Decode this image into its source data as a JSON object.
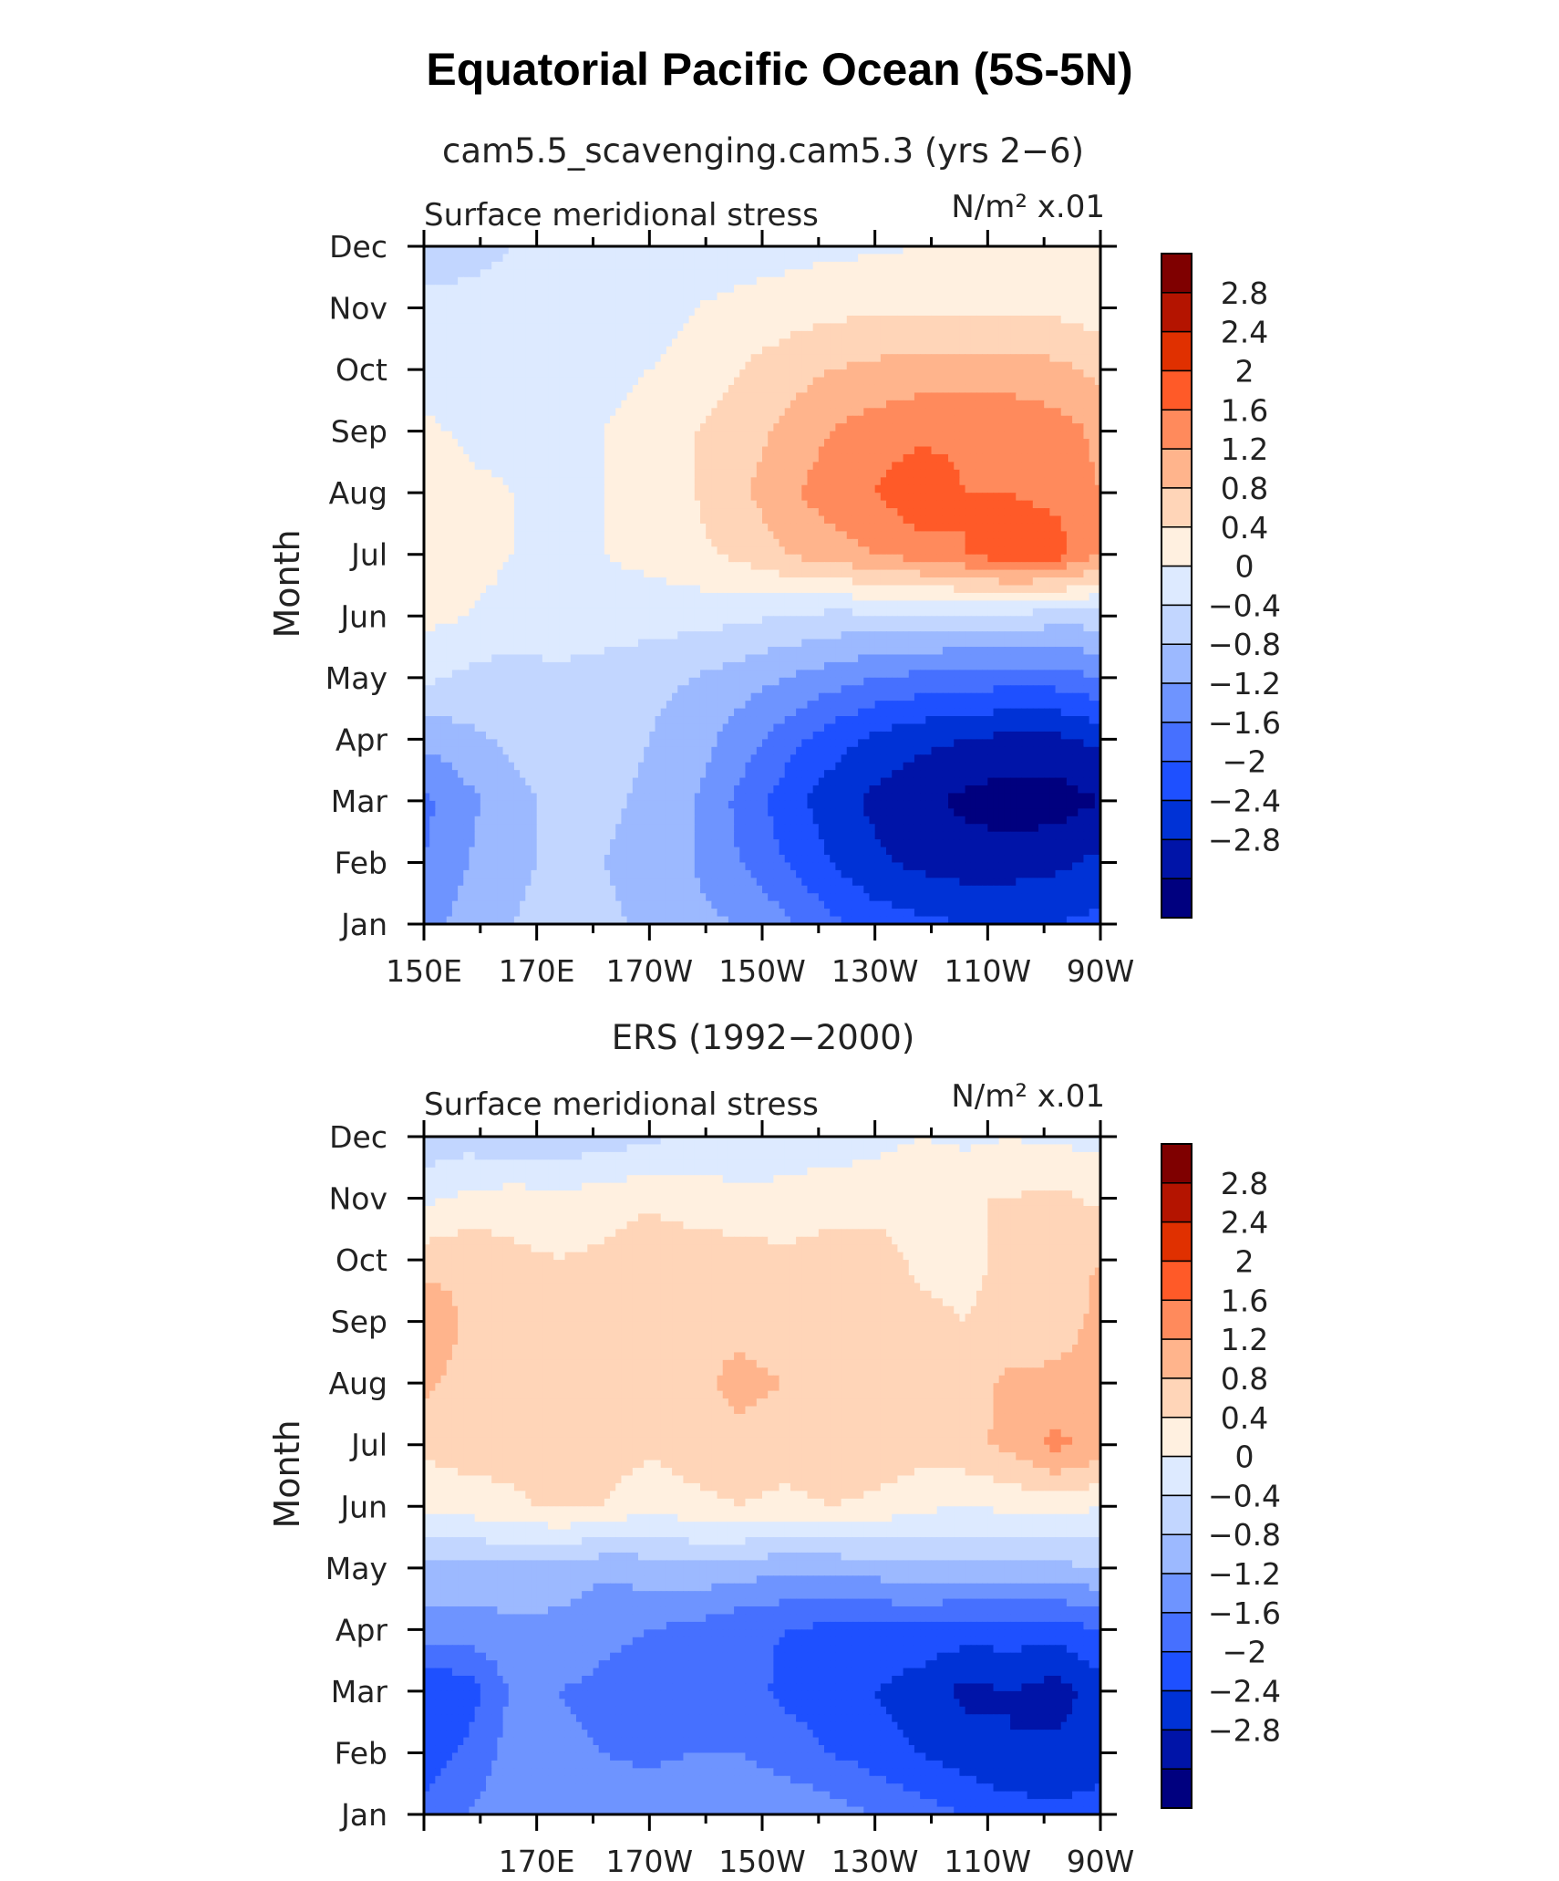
{
  "figure": {
    "title": "Equatorial Pacific Ocean (5S-5N)",
    "colors": [
      "#00007f",
      "#0014a8",
      "#0032d6",
      "#1e50ff",
      "#4670ff",
      "#6e94ff",
      "#9cb9ff",
      "#c2d6ff",
      "#ddeaff",
      "#fff0e0",
      "#ffd5b8",
      "#ffb48c",
      "#ff8a5c",
      "#ff5a28",
      "#e03000",
      "#b41400",
      "#7f0000"
    ]
  },
  "chart_data": [
    {
      "type": "heatmap",
      "subtitle": "cam5.5_scavenging.cam5.3 (yrs 2−6)",
      "left_label": "Surface meridional stress",
      "right_label": "N/m² x.01",
      "ylabel": "Month",
      "x_tick_labels": [
        "150E",
        "170E",
        "170W",
        "150W",
        "130W",
        "110W",
        "90W"
      ],
      "y_tick_labels": [
        "Jan",
        "Feb",
        "Mar",
        "Apr",
        "May",
        "Jun",
        "Jul",
        "Aug",
        "Sep",
        "Oct",
        "Nov",
        "Dec"
      ],
      "x_range_deg_east": [
        150,
        270
      ],
      "levels": [
        "2.8",
        "2.4",
        "2",
        "1.6",
        "1.2",
        "0.8",
        "0.4",
        "0",
        "−0.4",
        "−0.8",
        "−1.2",
        "−1.6",
        "−2",
        "−2.4",
        "−2.8"
      ],
      "level_values": [
        -2.8,
        -2.4,
        -2.0,
        -1.6,
        -1.2,
        -0.8,
        -0.4,
        0,
        0.4,
        0.8,
        1.2,
        1.6,
        2.0,
        2.4,
        2.8
      ],
      "x": [
        150,
        158,
        166,
        174,
        182,
        190,
        198,
        206,
        214,
        222,
        230,
        238,
        246,
        254,
        262,
        270
      ],
      "values": [
        [
          -1.0,
          -0.6,
          -0.4,
          -0.2,
          -0.3,
          -0.5,
          -0.7,
          -0.8,
          -1.1,
          -1.5,
          -1.8,
          -1.9,
          -2.0,
          -2.0,
          -2.0,
          -1.9
        ],
        [
          -1.2,
          -0.8,
          -0.5,
          -0.3,
          -0.4,
          -0.6,
          -0.8,
          -1.2,
          -1.6,
          -2.0,
          -2.3,
          -2.5,
          -2.6,
          -2.6,
          -2.5,
          -2.3
        ],
        [
          -1.3,
          -0.9,
          -0.5,
          -0.3,
          -0.3,
          -0.5,
          -0.8,
          -1.3,
          -1.8,
          -2.2,
          -2.5,
          -2.7,
          -2.9,
          -3.0,
          -3.0,
          -2.8
        ],
        [
          -0.7,
          -0.5,
          -0.3,
          -0.2,
          -0.2,
          -0.4,
          -0.6,
          -1.0,
          -1.4,
          -1.8,
          -2.1,
          -2.3,
          -2.4,
          -2.5,
          -2.5,
          -2.3
        ],
        [
          0.1,
          -0.1,
          -0.2,
          -0.1,
          -0.2,
          -0.3,
          -0.4,
          -0.6,
          -0.8,
          -1.0,
          -1.2,
          -1.3,
          -1.4,
          -1.4,
          -1.4,
          -1.2
        ],
        [
          0.5,
          0.4,
          0.3,
          0.3,
          0.25,
          0.2,
          0.15,
          0.1,
          0.0,
          -0.1,
          -0.1,
          -0.1,
          -0.1,
          -0.1,
          -0.2,
          -0.2
        ],
        [
          0.7,
          0.5,
          0.4,
          0.35,
          0.4,
          0.5,
          0.7,
          0.9,
          1.2,
          1.4,
          1.6,
          1.8,
          2.0,
          2.3,
          2.2,
          1.6
        ],
        [
          0.8,
          0.5,
          0.4,
          0.35,
          0.4,
          0.55,
          0.8,
          1.1,
          1.5,
          1.8,
          2.0,
          2.3,
          2.0,
          2.0,
          1.9,
          1.6
        ],
        [
          0.5,
          0.3,
          0.25,
          0.3,
          0.4,
          0.55,
          0.8,
          1.0,
          1.3,
          1.6,
          1.8,
          1.9,
          1.9,
          1.9,
          1.8,
          1.5
        ],
        [
          0.2,
          0.2,
          0.2,
          0.2,
          0.3,
          0.4,
          0.6,
          0.8,
          1.0,
          1.2,
          1.3,
          1.4,
          1.4,
          1.4,
          1.3,
          1.1
        ],
        [
          0.1,
          0.1,
          0.1,
          0.1,
          0.15,
          0.2,
          0.4,
          0.5,
          0.6,
          0.7,
          0.7,
          0.7,
          0.7,
          0.7,
          0.7,
          0.6
        ],
        [
          -0.2,
          -0.1,
          0.0,
          0.0,
          0.05,
          0.1,
          0.15,
          0.2,
          0.25,
          0.3,
          0.35,
          0.4,
          0.45,
          0.5,
          0.55,
          0.5
        ]
      ]
    },
    {
      "type": "heatmap",
      "subtitle": "ERS (1992−2000)",
      "left_label": "Surface meridional stress",
      "right_label": "N/m² x.01",
      "ylabel": "Month",
      "x_tick_labels": [
        "170E",
        "170W",
        "150W",
        "130W",
        "110W",
        "90W"
      ],
      "y_tick_labels": [
        "Jan",
        "Feb",
        "Mar",
        "Apr",
        "May",
        "Jun",
        "Jul",
        "Aug",
        "Sep",
        "Oct",
        "Nov",
        "Dec"
      ],
      "x_range_deg_east": [
        150,
        270
      ],
      "levels": [
        "2.8",
        "2.4",
        "2",
        "1.6",
        "1.2",
        "0.8",
        "0.4",
        "0",
        "−0.4",
        "−0.8",
        "−1.2",
        "−1.6",
        "−2",
        "−2.4",
        "−2.8"
      ],
      "level_values": [
        -2.8,
        -2.4,
        -2.0,
        -1.6,
        -1.2,
        -0.8,
        -0.4,
        0,
        0.4,
        0.8,
        1.2,
        1.6,
        2.0,
        2.4,
        2.8
      ],
      "x": [
        150,
        158,
        166,
        174,
        182,
        190,
        198,
        206,
        214,
        222,
        230,
        238,
        246,
        254,
        262,
        270
      ],
      "values": [
        [
          -1.5,
          -1.2,
          -0.9,
          -0.8,
          -1.0,
          -0.9,
          -0.8,
          -0.8,
          -0.9,
          -1.0,
          -1.2,
          -1.4,
          -1.6,
          -1.8,
          -1.9,
          -1.9
        ],
        [
          -1.8,
          -1.5,
          -1.0,
          -1.1,
          -1.2,
          -1.3,
          -1.2,
          -1.2,
          -1.4,
          -1.6,
          -1.8,
          -2.0,
          -2.2,
          -2.4,
          -2.3,
          -2.1
        ],
        [
          -2.0,
          -1.8,
          -1.1,
          -1.2,
          -1.3,
          -1.4,
          -1.3,
          -1.4,
          -1.7,
          -1.8,
          -2.0,
          -2.2,
          -2.5,
          -2.4,
          -2.6,
          -2.2
        ],
        [
          -1.0,
          -1.0,
          -0.9,
          -0.9,
          -1.1,
          -1.2,
          -1.3,
          -1.5,
          -1.6,
          -1.7,
          -1.7,
          -1.7,
          -1.8,
          -1.8,
          -1.8,
          -1.6
        ],
        [
          -0.5,
          -0.5,
          -0.5,
          -0.6,
          -0.7,
          -0.6,
          -0.5,
          -0.6,
          -0.7,
          -0.7,
          -0.6,
          -0.5,
          -0.5,
          -0.5,
          -0.5,
          -0.4
        ],
        [
          0.5,
          0.6,
          0.7,
          0.9,
          0.8,
          0.5,
          0.7,
          0.8,
          0.7,
          0.8,
          0.7,
          0.5,
          0.4,
          0.5,
          0.6,
          0.4
        ],
        [
          0.9,
          1.0,
          1.0,
          1.1,
          1.0,
          0.9,
          1.0,
          1.1,
          1.0,
          1.1,
          1.1,
          1.0,
          1.1,
          1.3,
          1.7,
          1.5
        ],
        [
          1.3,
          1.0,
          1.0,
          1.1,
          1.2,
          1.0,
          1.1,
          1.3,
          1.2,
          1.2,
          1.1,
          0.9,
          1.0,
          1.3,
          1.3,
          1.4
        ],
        [
          1.6,
          1.1,
          1.0,
          0.9,
          1.0,
          1.2,
          1.2,
          1.1,
          1.0,
          1.1,
          1.1,
          0.9,
          0.8,
          0.9,
          1.0,
          1.3
        ],
        [
          1.0,
          1.1,
          0.9,
          0.8,
          0.9,
          1.1,
          1.0,
          1.0,
          0.9,
          1.0,
          1.0,
          0.7,
          0.7,
          0.9,
          1.1,
          1.2
        ],
        [
          0.3,
          0.5,
          0.6,
          0.5,
          0.6,
          0.7,
          0.6,
          0.5,
          0.5,
          0.6,
          0.6,
          0.7,
          0.8,
          0.8,
          0.9,
          0.7
        ],
        [
          -0.3,
          -0.2,
          -0.4,
          -0.3,
          -0.2,
          -0.1,
          0.1,
          0.1,
          0.2,
          0.2,
          0.3,
          0.4,
          0.3,
          0.4,
          0.3,
          0.3
        ]
      ]
    }
  ]
}
